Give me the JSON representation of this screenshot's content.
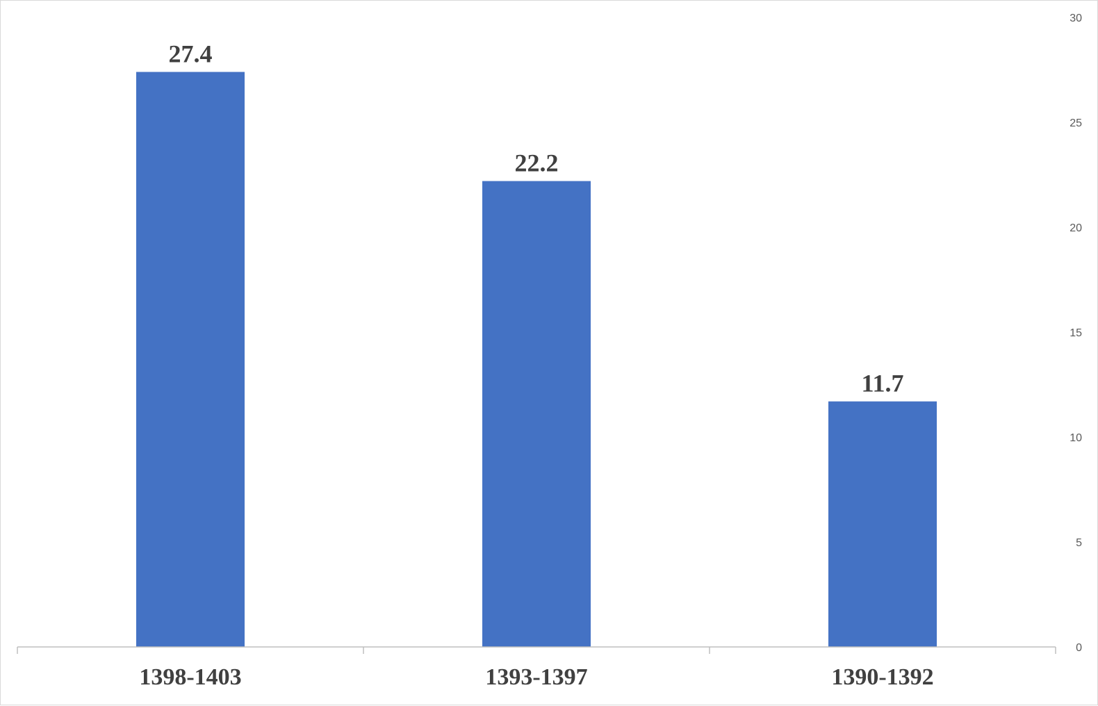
{
  "chart_data": {
    "type": "bar",
    "categories": [
      "1398-1403",
      "1393-1397",
      "1390-1392"
    ],
    "values": [
      27.4,
      22.2,
      11.7
    ],
    "data_labels": [
      "27.4",
      "22.2",
      "11.7"
    ],
    "y_ticks": [
      "0",
      "5",
      "10",
      "15",
      "20",
      "25",
      "30"
    ],
    "ylim": [
      0,
      30
    ],
    "y_axis_side": "right",
    "grid": false,
    "legend": "none",
    "bar_color": "#4472c4"
  }
}
